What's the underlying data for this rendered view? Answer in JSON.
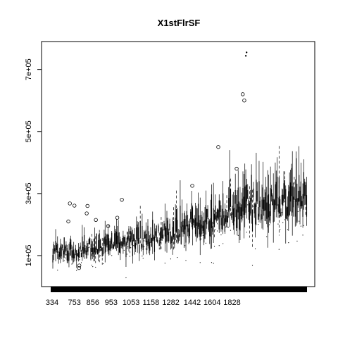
{
  "chart_data": {
    "type": "boxplot",
    "title": "X1stFlrSF",
    "xlabel": "",
    "ylabel": "",
    "x_range": [
      334,
      2000
    ],
    "ylim": [
      0,
      790000
    ],
    "y_ticks": [
      {
        "value": 100000,
        "label": "1e+05"
      },
      {
        "value": 300000,
        "label": "3e+05"
      },
      {
        "value": 500000,
        "label": "5e+05"
      },
      {
        "value": 700000,
        "label": "7e+05"
      }
    ],
    "x_ticks": [
      {
        "value": 334,
        "label": "334"
      },
      {
        "value": 480,
        "label": "753"
      },
      {
        "value": 600,
        "label": "856"
      },
      {
        "value": 720,
        "label": "953"
      },
      {
        "value": 850,
        "label": "1053"
      },
      {
        "value": 980,
        "label": "1158"
      },
      {
        "value": 1110,
        "label": "1282"
      },
      {
        "value": 1250,
        "label": "1442"
      },
      {
        "value": 1380,
        "label": "1604"
      },
      {
        "value": 1510,
        "label": "1828"
      }
    ],
    "trend": {
      "x": [
        334,
        500,
        700,
        900,
        1100,
        1300,
        1500,
        1700,
        2000
      ],
      "median": [
        110000,
        120000,
        135000,
        150000,
        175000,
        205000,
        240000,
        270000,
        290000
      ]
    },
    "outliers": [
      {
        "x": 440,
        "y": 210000
      },
      {
        "x": 450,
        "y": 268000
      },
      {
        "x": 480,
        "y": 261000
      },
      {
        "x": 510,
        "y": 60000
      },
      {
        "x": 512,
        "y": 68000
      },
      {
        "x": 560,
        "y": 236000
      },
      {
        "x": 565,
        "y": 260000
      },
      {
        "x": 620,
        "y": 215000
      },
      {
        "x": 700,
        "y": 195000
      },
      {
        "x": 760,
        "y": 222000
      },
      {
        "x": 790,
        "y": 280000
      },
      {
        "x": 1250,
        "y": 325000
      },
      {
        "x": 1420,
        "y": 450000
      },
      {
        "x": 1540,
        "y": 380000
      },
      {
        "x": 1600,
        "y": 744000
      },
      {
        "x": 1605,
        "y": 755000
      },
      {
        "x": 1580,
        "y": 620000
      },
      {
        "x": 1590,
        "y": 600000
      }
    ]
  }
}
